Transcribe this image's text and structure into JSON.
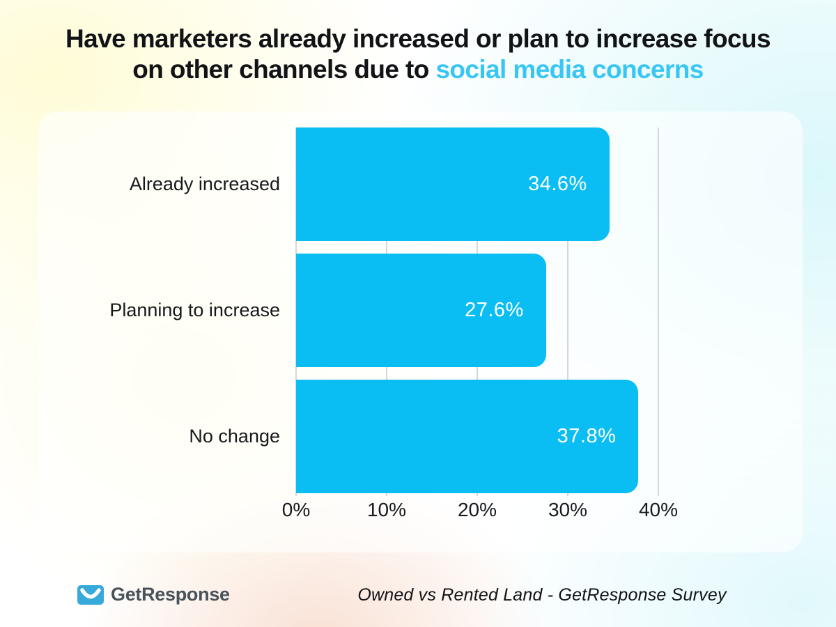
{
  "title": {
    "line1": "Have marketers already increased or plan to increase focus",
    "line2_plain": "on other channels due to ",
    "line2_highlight": "social media concerns"
  },
  "colors": {
    "bar": "#0abdf2",
    "title_highlight": "#38c6f5",
    "logo_blue": "#37a9da",
    "logo_text": "#48525b",
    "gridline": "#d3d8d9"
  },
  "chart_data": {
    "type": "bar",
    "orientation": "horizontal",
    "categories": [
      "Already increased",
      "Planning to increase",
      "No change"
    ],
    "values": [
      34.6,
      27.6,
      37.8
    ],
    "value_labels": [
      "34.6%",
      "27.6%",
      "37.8%"
    ],
    "xlim": [
      0,
      40
    ],
    "xtick_values": [
      0,
      10,
      20,
      30,
      40
    ],
    "xtick_labels": [
      "0%",
      "10%",
      "20%",
      "30%",
      "40%"
    ],
    "grid": "vertical",
    "legend": "none",
    "title": "Have marketers already increased or plan to increase focus on other channels due to social media concerns"
  },
  "footer": {
    "logo_text": "GetResponse",
    "caption": "Owned vs Rented Land - GetResponse Survey"
  }
}
